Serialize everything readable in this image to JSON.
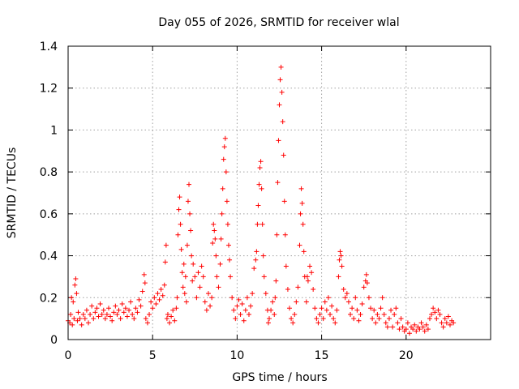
{
  "chart_data": {
    "type": "scatter",
    "title": "Day 055 of 2026, SRMTID for receiver wlal",
    "xlabel": "GPS time / hours",
    "ylabel": "SRMTID / TECUs",
    "xlim": [
      0,
      25
    ],
    "ylim": [
      0,
      1.4
    ],
    "xticks": [
      0,
      5,
      10,
      15,
      20
    ],
    "yticks": [
      0,
      0.2,
      0.4,
      0.6,
      0.8,
      1,
      1.2,
      1.4
    ],
    "xtick_labels": [
      "0",
      "5",
      "10",
      "15",
      "20"
    ],
    "ytick_labels": [
      "0",
      "0.2",
      "0.4",
      "0.6",
      "0.8",
      "1",
      "1.2",
      "1.4"
    ],
    "grid": true,
    "series": [
      {
        "name": "SRMTID",
        "marker": "+",
        "color": "#ff0000",
        "points": [
          [
            0.0,
            0.09
          ],
          [
            0.1,
            0.08
          ],
          [
            0.15,
            0.12
          ],
          [
            0.2,
            0.2
          ],
          [
            0.25,
            0.07
          ],
          [
            0.3,
            0.18
          ],
          [
            0.35,
            0.1
          ],
          [
            0.4,
            0.26
          ],
          [
            0.45,
            0.29
          ],
          [
            0.5,
            0.22
          ],
          [
            0.55,
            0.09
          ],
          [
            0.6,
            0.13
          ],
          [
            0.7,
            0.1
          ],
          [
            0.8,
            0.07
          ],
          [
            0.9,
            0.12
          ],
          [
            1.0,
            0.1
          ],
          [
            1.1,
            0.14
          ],
          [
            1.2,
            0.08
          ],
          [
            1.3,
            0.12
          ],
          [
            1.4,
            0.16
          ],
          [
            1.5,
            0.1
          ],
          [
            1.6,
            0.13
          ],
          [
            1.7,
            0.15
          ],
          [
            1.8,
            0.11
          ],
          [
            1.9,
            0.17
          ],
          [
            2.0,
            0.12
          ],
          [
            2.1,
            0.14
          ],
          [
            2.2,
            0.1
          ],
          [
            2.3,
            0.12
          ],
          [
            2.4,
            0.15
          ],
          [
            2.5,
            0.11
          ],
          [
            2.6,
            0.09
          ],
          [
            2.7,
            0.13
          ],
          [
            2.8,
            0.16
          ],
          [
            2.9,
            0.12
          ],
          [
            3.0,
            0.14
          ],
          [
            3.1,
            0.1
          ],
          [
            3.2,
            0.17
          ],
          [
            3.3,
            0.13
          ],
          [
            3.4,
            0.15
          ],
          [
            3.5,
            0.11
          ],
          [
            3.6,
            0.14
          ],
          [
            3.7,
            0.18
          ],
          [
            3.8,
            0.12
          ],
          [
            3.9,
            0.1
          ],
          [
            4.0,
            0.15
          ],
          [
            4.1,
            0.13
          ],
          [
            4.2,
            0.19
          ],
          [
            4.3,
            0.16
          ],
          [
            4.4,
            0.23
          ],
          [
            4.5,
            0.31
          ],
          [
            4.55,
            0.27
          ],
          [
            4.6,
            0.1
          ],
          [
            4.7,
            0.08
          ],
          [
            4.8,
            0.12
          ],
          [
            4.9,
            0.18
          ],
          [
            5.0,
            0.15
          ],
          [
            5.1,
            0.2
          ],
          [
            5.2,
            0.17
          ],
          [
            5.3,
            0.22
          ],
          [
            5.4,
            0.19
          ],
          [
            5.5,
            0.24
          ],
          [
            5.6,
            0.21
          ],
          [
            5.7,
            0.26
          ],
          [
            5.75,
            0.37
          ],
          [
            5.8,
            0.45
          ],
          [
            5.85,
            0.1
          ],
          [
            5.9,
            0.12
          ],
          [
            6.0,
            0.08
          ],
          [
            6.1,
            0.11
          ],
          [
            6.2,
            0.14
          ],
          [
            6.3,
            0.09
          ],
          [
            6.4,
            0.15
          ],
          [
            6.45,
            0.2
          ],
          [
            6.5,
            0.5
          ],
          [
            6.55,
            0.62
          ],
          [
            6.6,
            0.68
          ],
          [
            6.65,
            0.55
          ],
          [
            6.7,
            0.43
          ],
          [
            6.75,
            0.32
          ],
          [
            6.8,
            0.25
          ],
          [
            6.85,
            0.36
          ],
          [
            6.9,
            0.22
          ],
          [
            6.95,
            0.3
          ],
          [
            7.0,
            0.18
          ],
          [
            7.05,
            0.45
          ],
          [
            7.1,
            0.66
          ],
          [
            7.15,
            0.74
          ],
          [
            7.2,
            0.6
          ],
          [
            7.25,
            0.52
          ],
          [
            7.3,
            0.4
          ],
          [
            7.35,
            0.28
          ],
          [
            7.4,
            0.36
          ],
          [
            7.5,
            0.3
          ],
          [
            7.6,
            0.2
          ],
          [
            7.7,
            0.32
          ],
          [
            7.8,
            0.25
          ],
          [
            7.9,
            0.35
          ],
          [
            8.0,
            0.3
          ],
          [
            8.1,
            0.18
          ],
          [
            8.2,
            0.14
          ],
          [
            8.3,
            0.22
          ],
          [
            8.4,
            0.16
          ],
          [
            8.5,
            0.2
          ],
          [
            8.55,
            0.46
          ],
          [
            8.6,
            0.55
          ],
          [
            8.65,
            0.52
          ],
          [
            8.7,
            0.48
          ],
          [
            8.75,
            0.4
          ],
          [
            8.8,
            0.3
          ],
          [
            8.9,
            0.25
          ],
          [
            9.0,
            0.36
          ],
          [
            9.05,
            0.48
          ],
          [
            9.1,
            0.6
          ],
          [
            9.15,
            0.72
          ],
          [
            9.2,
            0.86
          ],
          [
            9.25,
            0.92
          ],
          [
            9.3,
            0.96
          ],
          [
            9.35,
            0.8
          ],
          [
            9.4,
            0.66
          ],
          [
            9.45,
            0.55
          ],
          [
            9.5,
            0.45
          ],
          [
            9.55,
            0.38
          ],
          [
            9.6,
            0.3
          ],
          [
            9.7,
            0.2
          ],
          [
            9.8,
            0.14
          ],
          [
            9.9,
            0.1
          ],
          [
            10.0,
            0.16
          ],
          [
            10.1,
            0.19
          ],
          [
            10.2,
            0.12
          ],
          [
            10.3,
            0.17
          ],
          [
            10.4,
            0.09
          ],
          [
            10.5,
            0.14
          ],
          [
            10.6,
            0.2
          ],
          [
            10.7,
            0.12
          ],
          [
            10.8,
            0.16
          ],
          [
            10.9,
            0.22
          ],
          [
            11.0,
            0.34
          ],
          [
            11.1,
            0.38
          ],
          [
            11.15,
            0.42
          ],
          [
            11.2,
            0.55
          ],
          [
            11.25,
            0.64
          ],
          [
            11.3,
            0.74
          ],
          [
            11.35,
            0.82
          ],
          [
            11.4,
            0.85
          ],
          [
            11.45,
            0.72
          ],
          [
            11.5,
            0.55
          ],
          [
            11.55,
            0.4
          ],
          [
            11.6,
            0.3
          ],
          [
            11.7,
            0.22
          ],
          [
            11.8,
            0.14
          ],
          [
            11.85,
            0.08
          ],
          [
            11.9,
            0.1
          ],
          [
            12.0,
            0.14
          ],
          [
            12.1,
            0.18
          ],
          [
            12.2,
            0.12
          ],
          [
            12.25,
            0.2
          ],
          [
            12.3,
            0.28
          ],
          [
            12.35,
            0.5
          ],
          [
            12.4,
            0.75
          ],
          [
            12.45,
            0.95
          ],
          [
            12.5,
            1.12
          ],
          [
            12.55,
            1.24
          ],
          [
            12.6,
            1.3
          ],
          [
            12.65,
            1.18
          ],
          [
            12.7,
            1.04
          ],
          [
            12.75,
            0.88
          ],
          [
            12.8,
            0.66
          ],
          [
            12.85,
            0.5
          ],
          [
            12.9,
            0.35
          ],
          [
            13.0,
            0.24
          ],
          [
            13.1,
            0.15
          ],
          [
            13.2,
            0.1
          ],
          [
            13.3,
            0.08
          ],
          [
            13.4,
            0.12
          ],
          [
            13.5,
            0.18
          ],
          [
            13.6,
            0.25
          ],
          [
            13.7,
            0.45
          ],
          [
            13.75,
            0.6
          ],
          [
            13.8,
            0.72
          ],
          [
            13.85,
            0.65
          ],
          [
            13.9,
            0.55
          ],
          [
            13.95,
            0.42
          ],
          [
            14.0,
            0.3
          ],
          [
            14.1,
            0.18
          ],
          [
            14.15,
            0.3
          ],
          [
            14.2,
            0.28
          ],
          [
            14.3,
            0.35
          ],
          [
            14.4,
            0.32
          ],
          [
            14.5,
            0.24
          ],
          [
            14.6,
            0.15
          ],
          [
            14.7,
            0.1
          ],
          [
            14.8,
            0.08
          ],
          [
            14.9,
            0.12
          ],
          [
            15.0,
            0.15
          ],
          [
            15.1,
            0.1
          ],
          [
            15.2,
            0.18
          ],
          [
            15.3,
            0.14
          ],
          [
            15.4,
            0.2
          ],
          [
            15.5,
            0.12
          ],
          [
            15.6,
            0.16
          ],
          [
            15.7,
            0.1
          ],
          [
            15.8,
            0.08
          ],
          [
            15.9,
            0.14
          ],
          [
            16.0,
            0.3
          ],
          [
            16.05,
            0.38
          ],
          [
            16.1,
            0.42
          ],
          [
            16.15,
            0.4
          ],
          [
            16.2,
            0.35
          ],
          [
            16.3,
            0.24
          ],
          [
            16.4,
            0.2
          ],
          [
            16.5,
            0.22
          ],
          [
            16.6,
            0.18
          ],
          [
            16.7,
            0.12
          ],
          [
            16.8,
            0.15
          ],
          [
            16.9,
            0.1
          ],
          [
            17.0,
            0.2
          ],
          [
            17.1,
            0.14
          ],
          [
            17.2,
            0.09
          ],
          [
            17.3,
            0.12
          ],
          [
            17.4,
            0.17
          ],
          [
            17.5,
            0.25
          ],
          [
            17.6,
            0.28
          ],
          [
            17.65,
            0.31
          ],
          [
            17.7,
            0.27
          ],
          [
            17.8,
            0.2
          ],
          [
            17.9,
            0.15
          ],
          [
            18.0,
            0.1
          ],
          [
            18.1,
            0.14
          ],
          [
            18.2,
            0.08
          ],
          [
            18.3,
            0.12
          ],
          [
            18.4,
            0.1
          ],
          [
            18.5,
            0.15
          ],
          [
            18.6,
            0.2
          ],
          [
            18.7,
            0.12
          ],
          [
            18.8,
            0.08
          ],
          [
            18.9,
            0.06
          ],
          [
            19.0,
            0.1
          ],
          [
            19.1,
            0.14
          ],
          [
            19.2,
            0.06
          ],
          [
            19.3,
            0.12
          ],
          [
            19.4,
            0.15
          ],
          [
            19.5,
            0.08
          ],
          [
            19.6,
            0.05
          ],
          [
            19.7,
            0.1
          ],
          [
            19.8,
            0.06
          ],
          [
            19.9,
            0.04
          ],
          [
            20.0,
            0.05
          ],
          [
            20.1,
            0.08
          ],
          [
            20.2,
            0.03
          ],
          [
            20.3,
            0.06
          ],
          [
            20.4,
            0.05
          ],
          [
            20.5,
            0.07
          ],
          [
            20.6,
            0.04
          ],
          [
            20.7,
            0.06
          ],
          [
            20.8,
            0.05
          ],
          [
            20.9,
            0.08
          ],
          [
            21.0,
            0.06
          ],
          [
            21.1,
            0.04
          ],
          [
            21.2,
            0.07
          ],
          [
            21.3,
            0.05
          ],
          [
            21.4,
            0.1
          ],
          [
            21.5,
            0.12
          ],
          [
            21.6,
            0.15
          ],
          [
            21.7,
            0.13
          ],
          [
            21.8,
            0.1
          ],
          [
            21.9,
            0.14
          ],
          [
            22.0,
            0.12
          ],
          [
            22.1,
            0.08
          ],
          [
            22.2,
            0.06
          ],
          [
            22.3,
            0.1
          ],
          [
            22.4,
            0.08
          ],
          [
            22.5,
            0.11
          ],
          [
            22.6,
            0.07
          ],
          [
            22.7,
            0.09
          ],
          [
            22.8,
            0.08
          ]
        ]
      }
    ]
  }
}
